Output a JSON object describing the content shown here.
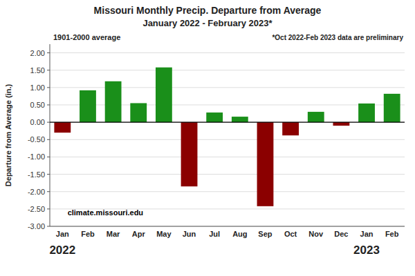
{
  "chart_data": {
    "type": "bar",
    "title": "Missouri Monthly Precip. Departure from Average",
    "subtitle": "January 2022 - February 2023*",
    "y_label": "Departure from Average (in.)",
    "annotations": [
      "1901-2000 average",
      "*Oct 2022-Feb 2023 data are preliminary",
      "climate.missouri.edu",
      "2022",
      "2023"
    ],
    "categories": [
      "Jan",
      "Feb",
      "Mar",
      "Apr",
      "May",
      "Jun",
      "Jul",
      "Aug",
      "Sep",
      "Oct",
      "Nov",
      "Dec",
      "Jan",
      "Feb"
    ],
    "values": [
      -0.3,
      0.92,
      1.18,
      0.55,
      1.58,
      -1.85,
      0.28,
      0.16,
      -2.42,
      -0.38,
      0.3,
      -0.1,
      0.54,
      0.82
    ],
    "colors": [
      "#8B0000",
      "#1a8f1a",
      "#1a8f1a",
      "#1a8f1a",
      "#1a8f1a",
      "#8B0000",
      "#1a8f1a",
      "#1a8f1a",
      "#8B0000",
      "#8B0000",
      "#1a8f1a",
      "#8B0000",
      "#1a8f1a",
      "#1a8f1a"
    ],
    "ylim": [
      -3.0,
      2.25
    ],
    "yticks": [
      {
        "value": -3.0,
        "label": "-3.00"
      },
      {
        "value": -2.5,
        "label": "-2.50"
      },
      {
        "value": -2.0,
        "label": "-2.00"
      },
      {
        "value": -1.5,
        "label": "-1.50"
      },
      {
        "value": -1.0,
        "label": "-1.00"
      },
      {
        "value": -0.5,
        "label": "-0.50"
      },
      {
        "value": 0.0,
        "label": "0.00"
      },
      {
        "value": 0.5,
        "label": "0.50"
      },
      {
        "value": 1.0,
        "label": "1.00"
      },
      {
        "value": 1.5,
        "label": "1.50"
      },
      {
        "value": 2.0,
        "label": "2.00"
      }
    ],
    "grid": true
  }
}
